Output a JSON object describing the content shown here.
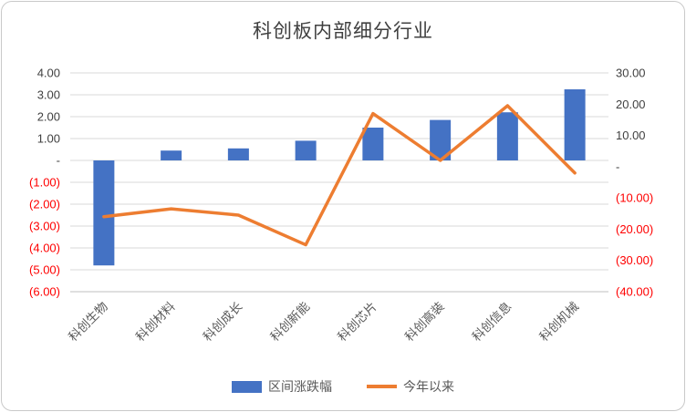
{
  "title": "科创板内部细分行业",
  "legend": [
    {
      "label": "区间涨跌幅",
      "type": "bar",
      "color": "#4472C4"
    },
    {
      "label": "今年以来",
      "type": "line",
      "color": "#ED7D31"
    }
  ],
  "chart_data": {
    "type": "bar",
    "subtype": "combo-bar-line",
    "title": "科创板内部细分行业",
    "categories": [
      "科创生物",
      "科创材料",
      "科创成长",
      "科创新能",
      "科创芯片",
      "科创高装",
      "科创信息",
      "科创机械"
    ],
    "series": [
      {
        "name": "区间涨跌幅",
        "type": "bar",
        "axis": "left",
        "color": "#4472C4",
        "values": [
          -4.8,
          0.45,
          0.55,
          0.9,
          1.5,
          1.85,
          2.2,
          3.25
        ]
      },
      {
        "name": "今年以来",
        "type": "line",
        "axis": "right",
        "color": "#ED7D31",
        "values": [
          -16,
          -13.5,
          -15.5,
          -25,
          17,
          2,
          19.5,
          -2
        ]
      }
    ],
    "left_axis": {
      "min": -6,
      "max": 4,
      "step": 1,
      "labels": [
        "4.00",
        "3.00",
        "2.00",
        "1.00",
        "-",
        "(1.00)",
        "(2.00)",
        "(3.00)",
        "(4.00)",
        "(5.00)",
        "(6.00)"
      ]
    },
    "right_axis": {
      "min": -40,
      "max": 30,
      "step": 10,
      "labels": [
        "30.00",
        "20.00",
        "10.00",
        "-",
        "(10.00)",
        "(20.00)",
        "(30.00)",
        "(40.00)"
      ]
    },
    "grid": true,
    "legend_position": "bottom",
    "grid_color": "#D9D9D9",
    "axis_color": "#BFBFBF",
    "negative_color": "#FF0000",
    "positive_color": "#404040"
  }
}
